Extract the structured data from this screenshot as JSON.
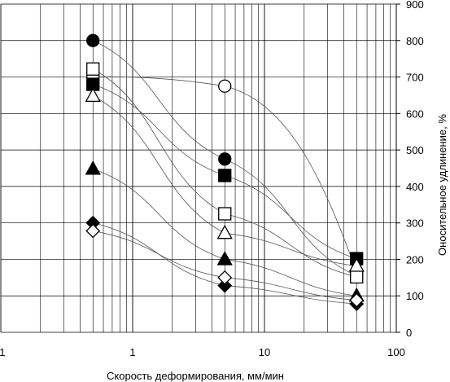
{
  "chart_data": {
    "type": "scatter",
    "title": "",
    "xlabel": "Скорость деформирования, мм/мин",
    "ylabel": "Оноcительное удлинение, %",
    "xscale": "log",
    "xlim": [
      0.1,
      100
    ],
    "ylim": [
      0,
      900
    ],
    "grid": true,
    "x_tick_labels": [
      ",1",
      "1",
      "10",
      "100"
    ],
    "y_tick_labels": [
      "0",
      "100",
      "200",
      "300",
      "400",
      "500",
      "600",
      "700",
      "800",
      "900"
    ],
    "y_axis_side": "right",
    "series": [
      {
        "marker": "circle-filled",
        "x": [
          0.5,
          5,
          50
        ],
        "y": [
          800,
          475,
          155
        ],
        "curve": "fit"
      },
      {
        "marker": "circle-open",
        "x": [
          0.5,
          5,
          50
        ],
        "y": [
          700,
          675,
          165
        ],
        "curve": "fit"
      },
      {
        "marker": "square-open",
        "x": [
          0.5,
          5,
          50
        ],
        "y": [
          722,
          325,
          152
        ],
        "curve": "fit"
      },
      {
        "marker": "square-filled",
        "x": [
          0.5,
          5,
          50
        ],
        "y": [
          680,
          430,
          202
        ],
        "curve": "fit"
      },
      {
        "marker": "triangle-open",
        "x": [
          0.5,
          5,
          50
        ],
        "y": [
          648,
          272,
          182
        ],
        "curve": "fit"
      },
      {
        "marker": "triangle-filled",
        "x": [
          0.5,
          5,
          50
        ],
        "y": [
          448,
          200,
          100
        ],
        "curve": "fit"
      },
      {
        "marker": "diamond-filled",
        "x": [
          0.5,
          5,
          50
        ],
        "y": [
          300,
          128,
          78
        ],
        "curve": "fit"
      },
      {
        "marker": "diamond-open",
        "x": [
          0.5,
          5,
          50
        ],
        "y": [
          278,
          150,
          88
        ],
        "curve": "fit"
      }
    ]
  }
}
